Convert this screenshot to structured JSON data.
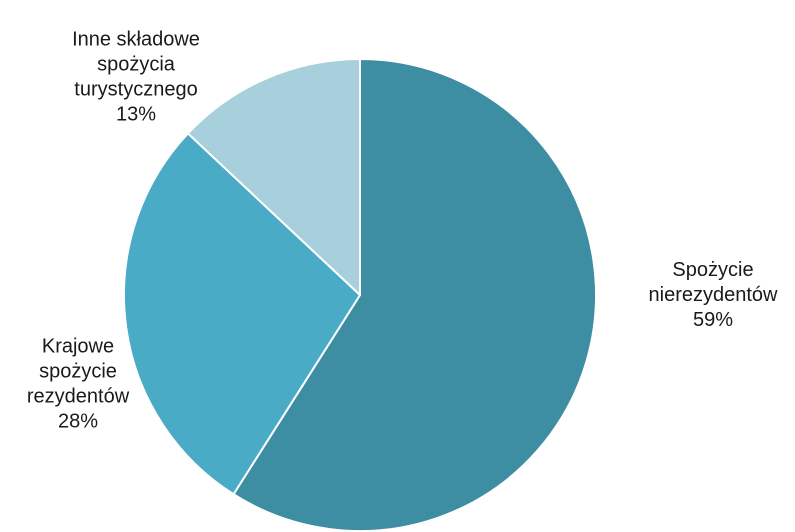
{
  "chart_data": {
    "type": "pie",
    "title": "",
    "legend": "none",
    "start_angle_deg": 0,
    "direction": "clockwise",
    "slices": [
      {
        "name": "Spożycie nierezydentów",
        "label_lines": [
          "Spożycie",
          "nierezydentów",
          "59%"
        ],
        "value": 59,
        "color": "#3d8da3"
      },
      {
        "name": "Krajowe spożycie rezydentów",
        "label_lines": [
          "Krajowe",
          "spożycie",
          "rezydentów",
          "28%"
        ],
        "value": 28,
        "color": "#4aabc6"
      },
      {
        "name": "Inne składowe spożycia turystycznego",
        "label_lines": [
          "Inne składowe",
          "spożycia",
          "turystycznego",
          "13%"
        ],
        "value": 13,
        "color": "#a8cfdc"
      }
    ]
  }
}
